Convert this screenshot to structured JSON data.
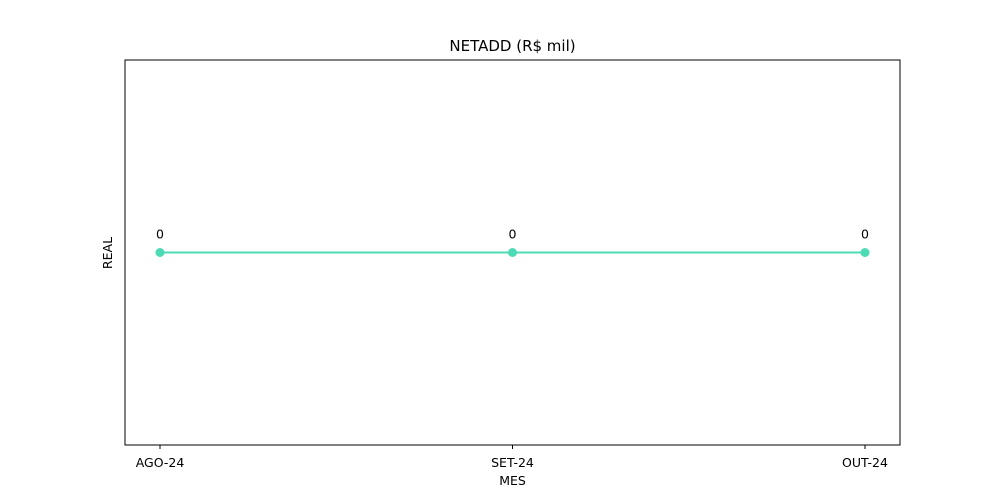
{
  "chart_data": {
    "type": "line",
    "title": "NETADD (R$ mil)",
    "xlabel": "MES",
    "ylabel": "REAL",
    "categories": [
      "AGO-24",
      "SET-24",
      "OUT-24"
    ],
    "series": [
      {
        "values": [
          0,
          0,
          0
        ],
        "data_labels": [
          "0",
          "0",
          "0"
        ],
        "color": "#4DDBB5",
        "marker": "circle"
      }
    ],
    "ylim": [
      -0.055,
      0.055
    ],
    "y_ticks_visible": false,
    "grid": false,
    "legend": "none"
  }
}
